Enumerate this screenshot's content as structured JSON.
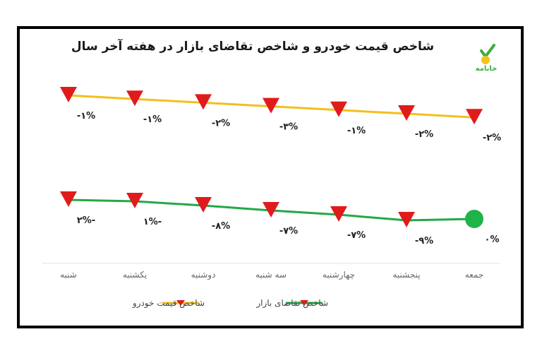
{
  "chart_data": {
    "type": "line",
    "title": "شاخص قیمت خودرو و شاخص تقاضای بازار در هفته آخر سال",
    "categories": [
      "شنبه",
      "یکشنبه",
      "دوشنبه",
      "سه شنبه",
      "چهارشنبه",
      "پنجشنبه",
      "جمعه"
    ],
    "series": [
      {
        "name": "شاخص قیمت خودرو",
        "values": [
          -1,
          -1,
          -2,
          -3,
          -1,
          -2,
          -2
        ],
        "labels": [
          "-۱%",
          "-۱%",
          "-۲%",
          "-۳%",
          "-۱%",
          "-۲%",
          "-۲%"
        ],
        "color": "#f2bf1e",
        "marker_color": "#e01b1b"
      },
      {
        "name": "شاخص تقاضای بازار",
        "values": [
          -2,
          -1,
          -8,
          -7,
          -7,
          -9,
          0
        ],
        "labels": [
          "۲%-",
          "۱%-",
          "-۸%",
          "-۷%",
          "-۷%",
          "-۹%",
          "۰%"
        ],
        "color": "#22a84a",
        "marker_color": "#e01b1b",
        "last_marker_color": "#1fb34a"
      }
    ],
    "legend": "bottom"
  },
  "logo": {
    "text": "خانامه",
    "color": "#3dad3d",
    "accent": "#f2c21e"
  }
}
